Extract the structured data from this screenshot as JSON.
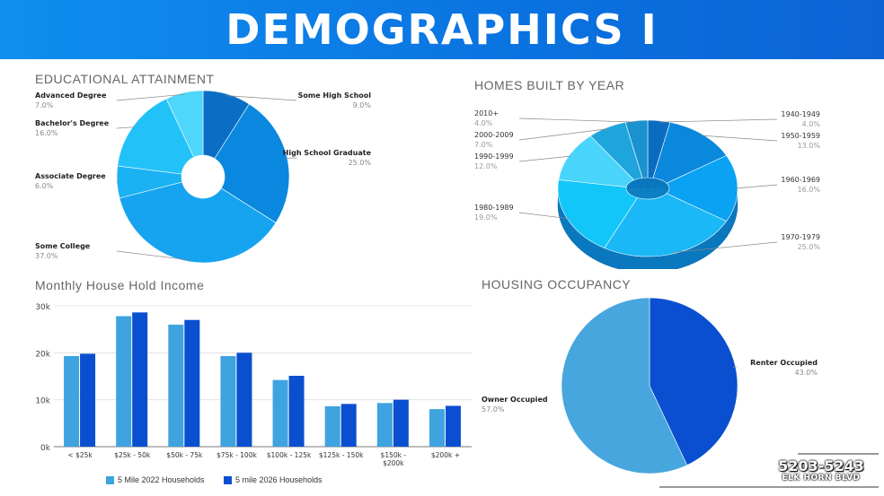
{
  "header": {
    "title": "DEMOGRAPHICS  I"
  },
  "sections": {
    "education": "EDUCATIONAL ATTAINMENT",
    "homes": "HOMES BUILT BY YEAR",
    "income": "Monthly House Hold Income",
    "occupancy": "HOUSING OCCUPANCY"
  },
  "address": {
    "number": "5203-5243",
    "street": "ELK HORN BLVD"
  },
  "colors": {
    "header": "#0a7ae8",
    "bar_2022": "#3fa3e0",
    "bar_2026": "#0a4fd0"
  },
  "chart_data": [
    {
      "id": "education",
      "type": "pie",
      "title": "EDUCATIONAL ATTAINMENT",
      "slices": [
        {
          "label": "Some High School",
          "value": "9.0%",
          "pct": 9.0,
          "color": "#0a6fc4"
        },
        {
          "label": "High School Graduate",
          "value": "25.0%",
          "pct": 25.0,
          "color": "#0a88df"
        },
        {
          "label": "Some College",
          "value": "37.0%",
          "pct": 37.0,
          "color": "#16a4f0"
        },
        {
          "label": "Associate Degree",
          "value": "6.0%",
          "pct": 6.0,
          "color": "#1ab2f3"
        },
        {
          "label": "Bachelor's Degree",
          "value": "16.0%",
          "pct": 16.0,
          "color": "#22c2f8"
        },
        {
          "label": "Advanced Degree",
          "value": "7.0%",
          "pct": 7.0,
          "color": "#4ed6fb"
        }
      ]
    },
    {
      "id": "homes",
      "type": "pie",
      "title": "HOMES BUILT BY YEAR",
      "slices": [
        {
          "label": "1940-1949",
          "value": "4.0%",
          "pct": 4.0,
          "color": "#0a6cc0"
        },
        {
          "label": "1950-1959",
          "value": "13.0%",
          "pct": 13.0,
          "color": "#0a88dc"
        },
        {
          "label": "1960-1969",
          "value": "16.0%",
          "pct": 16.0,
          "color": "#0aa2f2"
        },
        {
          "label": "1970-1979",
          "value": "25.0%",
          "pct": 25.0,
          "color": "#1ab8f6"
        },
        {
          "label": "1980-1989",
          "value": "19.0%",
          "pct": 19.0,
          "color": "#12c6fa"
        },
        {
          "label": "1990-1999",
          "value": "12.0%",
          "pct": 12.0,
          "color": "#48d4fb"
        },
        {
          "label": "2000-2009",
          "value": "7.0%",
          "pct": 7.0,
          "color": "#1ea6dc"
        },
        {
          "label": "2010+",
          "value": "4.0%",
          "pct": 4.0,
          "color": "#1a92d0"
        }
      ]
    },
    {
      "id": "income",
      "type": "bar",
      "title": "Monthly House Hold Income",
      "categories": [
        "< $25k",
        "$25k - 50k",
        "$50k - 75k",
        "$75k - 100k",
        "$100k - 125k",
        "$125k - 150k",
        "$150k - $200k",
        "$200k +"
      ],
      "series": [
        {
          "name": "5 Mile 2022 Households",
          "values": [
            19300,
            27800,
            26000,
            19300,
            14200,
            8600,
            9300,
            8000
          ],
          "color": "#3fa3e0"
        },
        {
          "name": "5 mile 2026 Households",
          "values": [
            19800,
            28600,
            27000,
            20000,
            15100,
            9100,
            10000,
            8700
          ],
          "color": "#0a4fd0"
        }
      ],
      "ylim": [
        0,
        30000
      ],
      "yticks": [
        "0k",
        "10k",
        "20k",
        "30k"
      ],
      "ytick_values": [
        0,
        10000,
        20000,
        30000
      ]
    },
    {
      "id": "occupancy",
      "type": "pie",
      "title": "HOUSING OCCUPANCY",
      "slices": [
        {
          "label": "Renter Occupied",
          "value": "43.0%",
          "pct": 43.0,
          "color": "#0a4fcf"
        },
        {
          "label": "Owner Occupied",
          "value": "57.0%",
          "pct": 57.0,
          "color": "#47a6dd"
        }
      ]
    }
  ]
}
